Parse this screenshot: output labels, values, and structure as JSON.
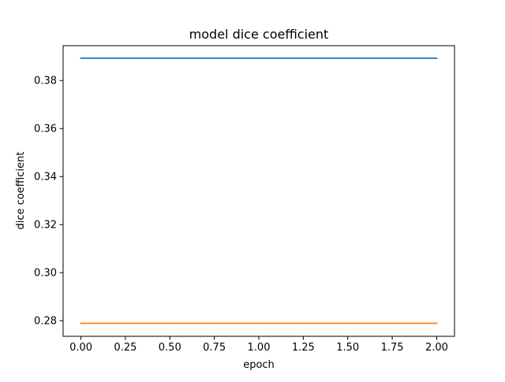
{
  "chart_data": {
    "type": "line",
    "title": "model dice coefficient",
    "xlabel": "epoch",
    "ylabel": "dice coefficient",
    "x": [
      0,
      1,
      2
    ],
    "xlim": [
      -0.1,
      2.1
    ],
    "ylim": [
      0.2735,
      0.3945
    ],
    "xticks": [
      0.0,
      0.25,
      0.5,
      0.75,
      1.0,
      1.25,
      1.5,
      1.75,
      2.0
    ],
    "xtick_labels": [
      "0.00",
      "0.25",
      "0.50",
      "0.75",
      "1.00",
      "1.25",
      "1.50",
      "1.75",
      "2.00"
    ],
    "yticks": [
      0.28,
      0.3,
      0.32,
      0.34,
      0.36,
      0.38
    ],
    "ytick_labels": [
      "0.28",
      "0.30",
      "0.32",
      "0.34",
      "0.36",
      "0.38"
    ],
    "grid": false,
    "series": [
      {
        "values": [
          0.3893,
          0.3893,
          0.3893
        ],
        "color": "#1f77b4"
      },
      {
        "values": [
          0.2789,
          0.2789,
          0.2789
        ],
        "color": "#ff7f0e"
      }
    ]
  }
}
